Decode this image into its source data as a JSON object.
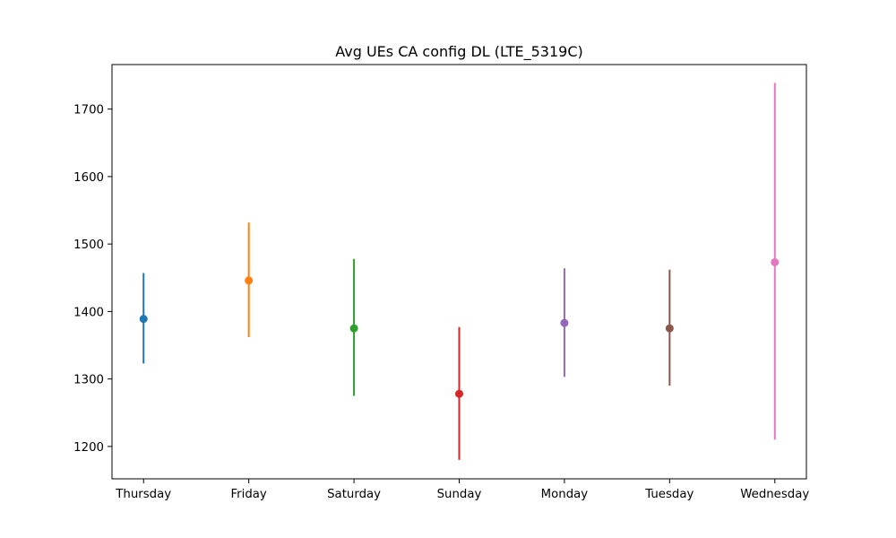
{
  "chart_data": {
    "type": "errorbar",
    "title": "Avg UEs CA config DL (LTE_5319C)",
    "xlabel": "",
    "ylabel": "",
    "categories": [
      "Thursday",
      "Friday",
      "Saturday",
      "Sunday",
      "Monday",
      "Tuesday",
      "Wednesday"
    ],
    "values": [
      1389,
      1446,
      1375,
      1278,
      1383,
      1375,
      1473
    ],
    "lower": [
      1323,
      1362,
      1275,
      1180,
      1303,
      1290,
      1210
    ],
    "upper": [
      1457,
      1532,
      1478,
      1377,
      1464,
      1462,
      1739
    ],
    "colors": [
      "#1f77b4",
      "#ff7f0e",
      "#2ca02c",
      "#d62728",
      "#9467bd",
      "#8c564b",
      "#e377c2"
    ],
    "yticks": [
      1200,
      1300,
      1400,
      1500,
      1600,
      1700
    ],
    "ylim": [
      1152,
      1766
    ],
    "grid": false,
    "legend": false
  }
}
